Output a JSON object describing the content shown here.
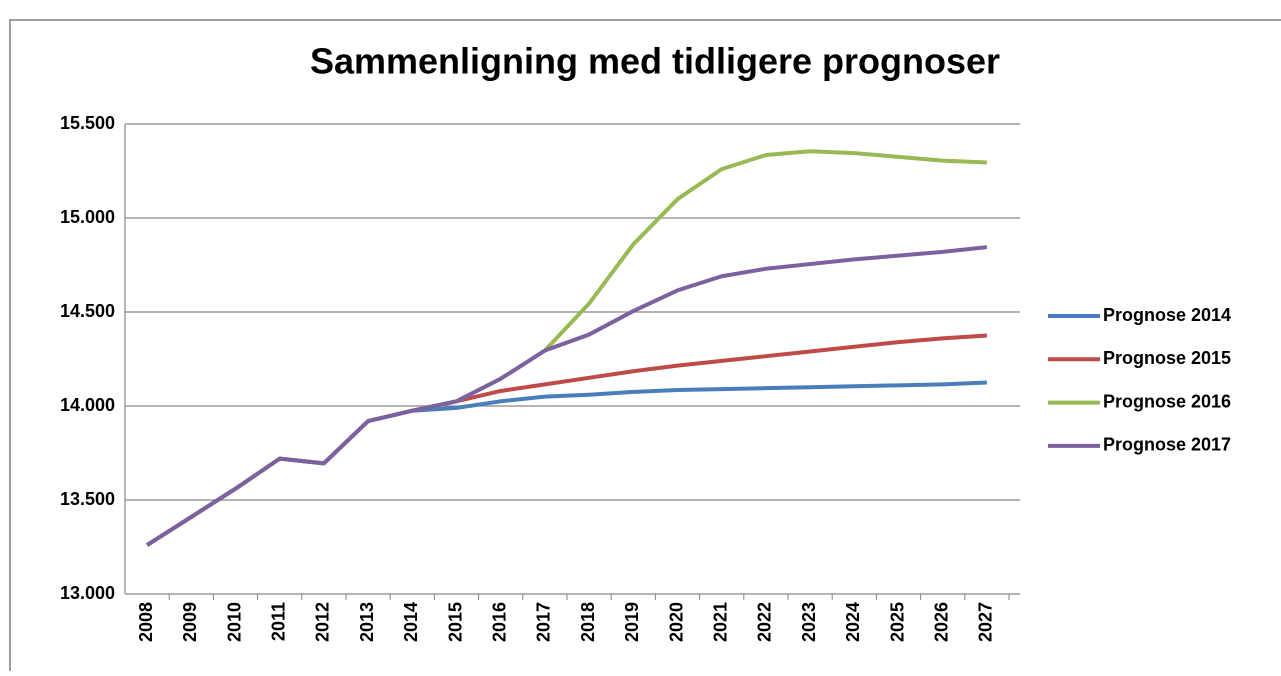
{
  "chart_data": {
    "type": "line",
    "title": "Sammenligning med tidligere prognoser",
    "categories": [
      "2008",
      "2009",
      "2010",
      "2011",
      "2012",
      "2013",
      "2014",
      "2015",
      "2016",
      "2017",
      "2018",
      "2019",
      "2020",
      "2021",
      "2022",
      "2023",
      "2024",
      "2025",
      "2026",
      "2027"
    ],
    "series": [
      {
        "name": "Prognose 2014",
        "color": "#4a7ebb",
        "values": [
          13260,
          13410,
          13560,
          13720,
          13695,
          13920,
          13975,
          13990,
          14025,
          14050,
          14060,
          14075,
          14085,
          14090,
          14095,
          14100,
          14105,
          14110,
          14115,
          14125
        ]
      },
      {
        "name": "Prognose 2015",
        "color": "#be4b48",
        "values": [
          13260,
          13410,
          13560,
          13720,
          13695,
          13920,
          13975,
          14025,
          14080,
          14115,
          14150,
          14185,
          14215,
          14240,
          14265,
          14290,
          14315,
          14340,
          14360,
          14375
        ]
      },
      {
        "name": "Prognose 2016",
        "color": "#98b954",
        "values": [
          13260,
          13410,
          13560,
          13720,
          13695,
          13920,
          13975,
          14025,
          14145,
          14295,
          14545,
          14860,
          15100,
          15260,
          15335,
          15355,
          15345,
          15325,
          15305,
          15295
        ]
      },
      {
        "name": "Prognose 2017",
        "color": "#7d60a0",
        "values": [
          13260,
          13410,
          13560,
          13720,
          13695,
          13920,
          13975,
          14025,
          14145,
          14295,
          14380,
          14505,
          14615,
          14690,
          14730,
          14755,
          14780,
          14800,
          14820,
          14845
        ]
      }
    ],
    "ylim": [
      13000,
      15500
    ],
    "yticks": [
      {
        "value": 13000,
        "label": "13.000"
      },
      {
        "value": 13500,
        "label": "13.500"
      },
      {
        "value": 14000,
        "label": "14.000"
      },
      {
        "value": 14500,
        "label": "14.500"
      },
      {
        "value": 15000,
        "label": "15.000"
      },
      {
        "value": 15500,
        "label": "15.500"
      }
    ],
    "grid": true,
    "legend": "right"
  }
}
